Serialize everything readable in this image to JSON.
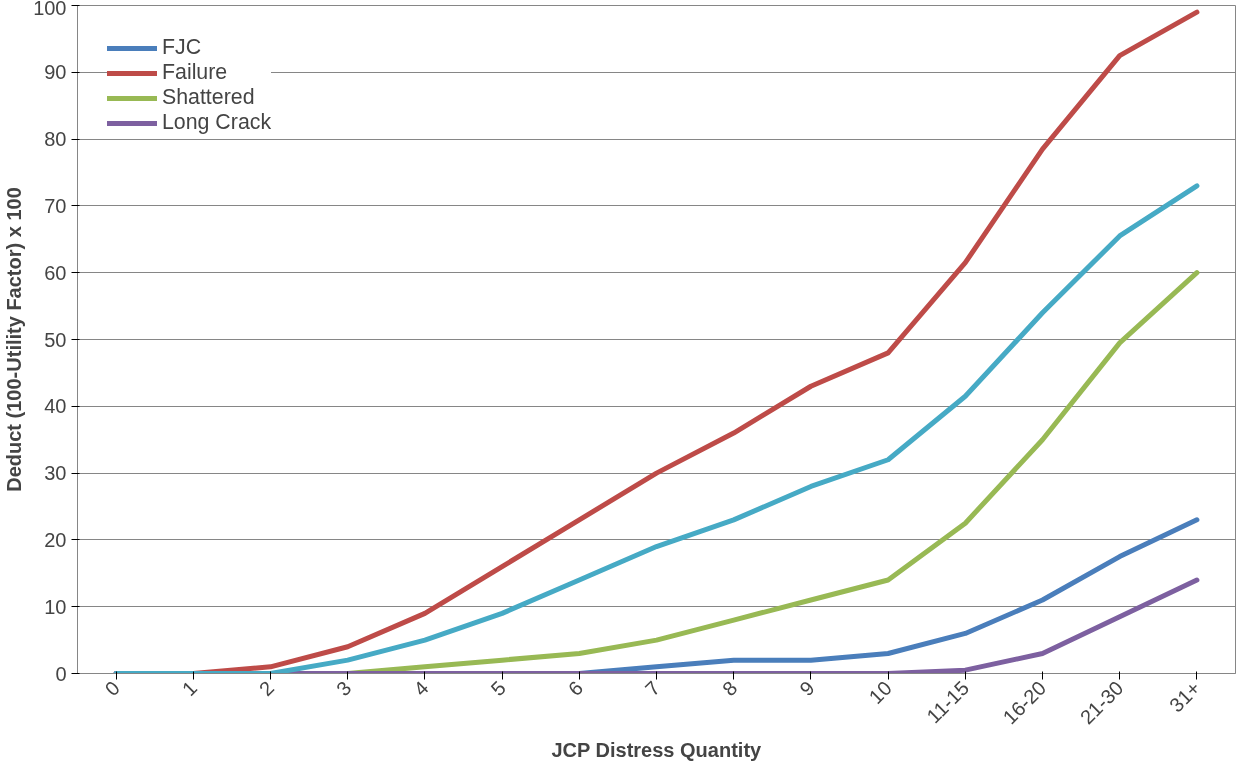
{
  "chart_data": {
    "type": "line",
    "xlabel": "JCP Distress Quantity",
    "ylabel": "Deduct (100-Utility Factor) x 100",
    "categories": [
      "0",
      "1",
      "2",
      "3",
      "4",
      "5",
      "6",
      "7",
      "8",
      "9",
      "10",
      "11-15",
      "16-20",
      "21-30",
      "31+"
    ],
    "series": [
      {
        "name": "FJC",
        "color": "#4a7ebb",
        "values": [
          0,
          0,
          0,
          0,
          0,
          0,
          0,
          1,
          2,
          2,
          3,
          6,
          11,
          17.5,
          23
        ]
      },
      {
        "name": "Failure",
        "color": "#be4b48",
        "values": [
          0,
          0,
          1,
          4,
          9,
          16,
          23,
          30,
          36,
          43,
          48,
          61.5,
          78.5,
          92.5,
          99
        ]
      },
      {
        "name": "Shattered",
        "color": "#98b954",
        "values": [
          null,
          null,
          0,
          0,
          1,
          2,
          3,
          5,
          8,
          11,
          14,
          22.5,
          35,
          49.5,
          60
        ]
      },
      {
        "name": "Long Crack",
        "color": "#7d60a0",
        "values": [
          0,
          0,
          0,
          0,
          0,
          0,
          0,
          0,
          0,
          0,
          0,
          0.5,
          3,
          8.5,
          14
        ]
      },
      {
        "color": "#46aac5",
        "values": [
          0,
          0,
          0,
          2,
          5,
          9,
          14,
          19,
          23,
          28,
          32,
          41.5,
          54,
          65.5,
          73
        ]
      }
    ],
    "ylim": [
      0,
      100
    ],
    "yticks": [
      0,
      10,
      20,
      30,
      40,
      50,
      60,
      70,
      80,
      90,
      100
    ],
    "grid": "y",
    "legend": "top left",
    "marker": "none",
    "line_style": "solid"
  }
}
